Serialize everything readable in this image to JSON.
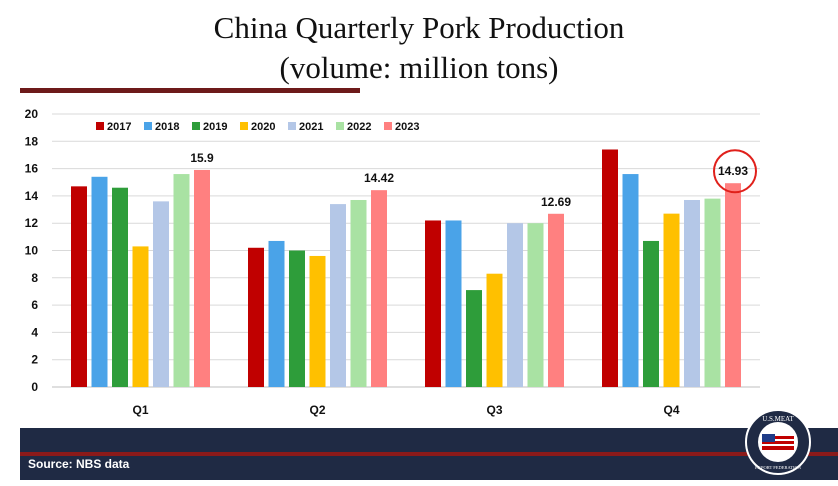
{
  "title_line1": "China Quarterly Pork Production",
  "title_line2": "(volume: million tons)",
  "source": "Source: NBS data",
  "logo": {
    "text_top": "U.S.MEAT",
    "text_bottom": "EXPORT FEDERATION"
  },
  "colors": {
    "2017": "#c00000",
    "2018": "#4aa3e8",
    "2019": "#2e9d3a",
    "2020": "#ffc000",
    "2021": "#b4c7e7",
    "2022": "#a9e2a3",
    "2023": "#ff8080",
    "highlight_circle": "#e0201b"
  },
  "chart_data": {
    "type": "bar",
    "categories": [
      "Q1",
      "Q2",
      "Q3",
      "Q4"
    ],
    "ylim": [
      0,
      20
    ],
    "yticks": [
      0,
      2,
      4,
      6,
      8,
      10,
      12,
      14,
      16,
      18,
      20
    ],
    "grid": true,
    "legend_position": "top-left",
    "series": [
      {
        "name": "2017",
        "values": [
          14.7,
          10.2,
          12.2,
          17.4
        ]
      },
      {
        "name": "2018",
        "values": [
          15.4,
          10.7,
          12.2,
          15.6
        ]
      },
      {
        "name": "2019",
        "values": [
          14.6,
          10.0,
          7.1,
          10.7
        ]
      },
      {
        "name": "2020",
        "values": [
          10.3,
          9.6,
          8.3,
          12.7
        ]
      },
      {
        "name": "2021",
        "values": [
          13.6,
          13.4,
          12.0,
          13.7
        ]
      },
      {
        "name": "2022",
        "values": [
          15.6,
          13.7,
          12.0,
          13.8
        ]
      },
      {
        "name": "2023",
        "values": [
          15.9,
          14.42,
          12.69,
          14.93
        ]
      }
    ],
    "data_labels": [
      "15.9",
      "14.42",
      "12.69",
      "14.93"
    ],
    "highlighted": {
      "series": "2023",
      "category": "Q4"
    }
  }
}
